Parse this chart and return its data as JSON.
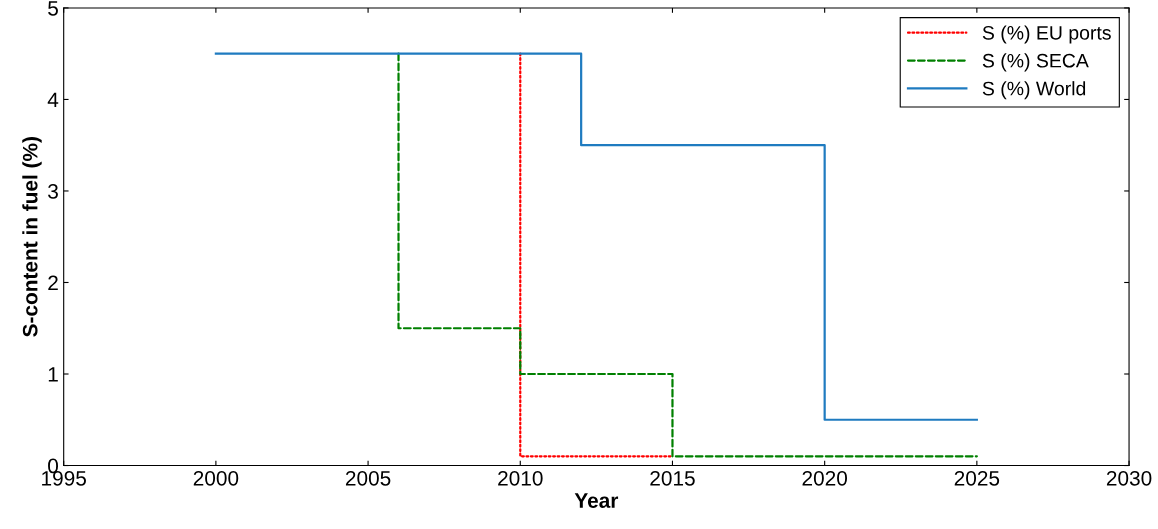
{
  "chart_data": {
    "type": "step",
    "xlabel": "Year",
    "ylabel": "S-content in fuel (%)",
    "xlim": [
      1995,
      2030
    ],
    "xticks": [
      1995,
      2000,
      2005,
      2010,
      2015,
      2020,
      2025,
      2030
    ],
    "ylim": [
      0,
      5
    ],
    "yticks": [
      0,
      1,
      2,
      3,
      4,
      5
    ],
    "grid": false,
    "legend": "top right",
    "marker": "none",
    "series": [
      {
        "name": "S (%) EU ports",
        "color": "#ff0000",
        "line_style": "dotted",
        "x": [
          2010,
          2010,
          2015
        ],
        "values": [
          4.5,
          0.1,
          0.1
        ]
      },
      {
        "name": "S (%) SECA",
        "color": "#008000",
        "line_style": "dashed",
        "x": [
          2006,
          2006,
          2010,
          2015,
          2025
        ],
        "values": [
          4.5,
          1.5,
          1.0,
          0.1,
          0.1
        ]
      },
      {
        "name": "S (%) World",
        "color": "#1f7bc0",
        "line_style": "solid",
        "x": [
          2000,
          2012,
          2020,
          2025
        ],
        "values": [
          4.5,
          3.5,
          0.5,
          0.5
        ]
      }
    ]
  }
}
